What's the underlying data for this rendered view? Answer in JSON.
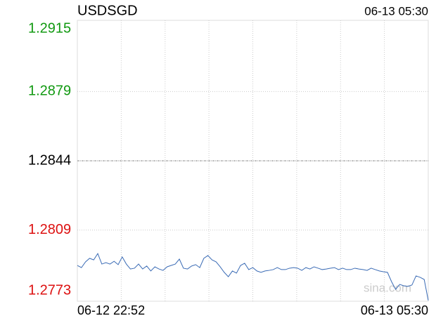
{
  "chart_data": {
    "type": "line",
    "title": "USDSGD",
    "time": "06-13 05:30",
    "x_labels": [
      "06-12 22:52",
      "06-13 05:30"
    ],
    "ylim": [
      1.2773,
      1.2915
    ],
    "yticks": [
      1.2915,
      1.2879,
      1.2844,
      1.2809,
      1.2773
    ],
    "tick_colors": [
      "#119911",
      "#119911",
      "#000000",
      "#dd1111",
      "#dd1111"
    ],
    "grid": true,
    "color": "#3a6bb5",
    "watermark": "sina.com",
    "values": [
      1.27911,
      1.279,
      1.27929,
      1.27947,
      1.27939,
      1.27971,
      1.27918,
      1.27925,
      1.27918,
      1.27932,
      1.27915,
      1.27954,
      1.27918,
      1.27893,
      1.27897,
      1.27918,
      1.27893,
      1.27908,
      1.27883,
      1.27904,
      1.27893,
      1.27886,
      1.27904,
      1.27911,
      1.27918,
      1.27943,
      1.27897,
      1.27893,
      1.27908,
      1.27915,
      1.279,
      1.27947,
      1.27961,
      1.27939,
      1.27929,
      1.27904,
      1.27876,
      1.27854,
      1.27883,
      1.27872,
      1.27911,
      1.27922,
      1.2789,
      1.279,
      1.27883,
      1.27876,
      1.27883,
      1.27886,
      1.2789,
      1.279,
      1.2789,
      1.2789,
      1.27897,
      1.279,
      1.27897,
      1.27886,
      1.279,
      1.27893,
      1.27904,
      1.27897,
      1.2789,
      1.27893,
      1.27897,
      1.279,
      1.2789,
      1.27897,
      1.2789,
      1.2789,
      1.27897,
      1.27893,
      1.2789,
      1.27886,
      1.27897,
      1.2789,
      1.27883,
      1.27879,
      1.27876,
      1.27829,
      1.2779,
      1.27815,
      1.27808,
      1.27805,
      1.27812,
      1.27858,
      1.27851,
      1.2784,
      1.27734
    ]
  }
}
